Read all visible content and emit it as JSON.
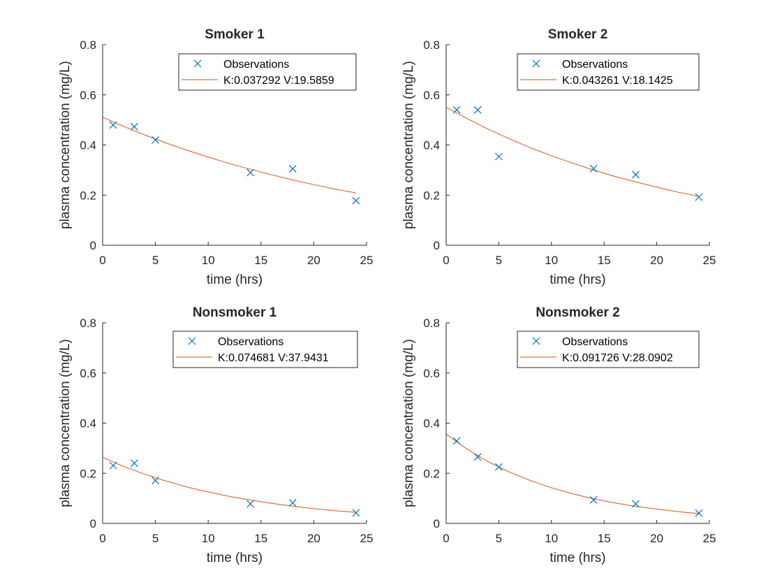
{
  "colors": {
    "observations": "#0072BD",
    "fit": "#D95319",
    "axis": "#262626",
    "legend_border": "#262626"
  },
  "chart_data": [
    {
      "type": "scatter",
      "title": "Smoker 1",
      "xlabel": "time (hrs)",
      "ylabel": "plasma concentration (mg/L)",
      "xlim": [
        0,
        25
      ],
      "ylim": [
        0,
        0.8
      ],
      "xticks": [
        "0",
        "5",
        "10",
        "15",
        "20",
        "25"
      ],
      "yticks": [
        "0",
        "0.2",
        "0.4",
        "0.6",
        "0.8"
      ],
      "grid": false,
      "legend_position": "top-right",
      "series": [
        {
          "name": "Observations",
          "kind": "markers",
          "marker": "x-icon",
          "x": [
            1,
            3,
            5,
            14,
            18,
            24
          ],
          "y": [
            0.48,
            0.473,
            0.42,
            0.29,
            0.305,
            0.178
          ]
        },
        {
          "name": "K:0.037292 V:19.5859",
          "kind": "line",
          "x": [
            0,
            2,
            4,
            6,
            8,
            10,
            12,
            14,
            16,
            18,
            20,
            22,
            24
          ],
          "y": [
            0.511,
            0.474,
            0.44,
            0.408,
            0.379,
            0.352,
            0.326,
            0.303,
            0.281,
            0.261,
            0.242,
            0.224,
            0.209
          ]
        }
      ]
    },
    {
      "type": "scatter",
      "title": "Smoker 2",
      "xlabel": "time (hrs)",
      "ylabel": "plasma concentration (mg/L)",
      "xlim": [
        0,
        25
      ],
      "ylim": [
        0,
        0.8
      ],
      "xticks": [
        "0",
        "5",
        "10",
        "15",
        "20",
        "25"
      ],
      "yticks": [
        "0",
        "0.2",
        "0.4",
        "0.6",
        "0.8"
      ],
      "grid": false,
      "legend_position": "top-right",
      "series": [
        {
          "name": "Observations",
          "kind": "markers",
          "marker": "x-icon",
          "x": [
            1,
            3,
            5,
            14,
            18,
            24
          ],
          "y": [
            0.54,
            0.54,
            0.354,
            0.306,
            0.282,
            0.192
          ]
        },
        {
          "name": "K:0.043261 V:18.1425",
          "kind": "line",
          "x": [
            0,
            2,
            4,
            6,
            8,
            10,
            12,
            14,
            16,
            18,
            20,
            22,
            24
          ],
          "y": [
            0.551,
            0.505,
            0.463,
            0.425,
            0.389,
            0.357,
            0.328,
            0.3,
            0.275,
            0.253,
            0.232,
            0.212,
            0.195
          ]
        }
      ]
    },
    {
      "type": "scatter",
      "title": "Nonsmoker 1",
      "xlabel": "time (hrs)",
      "ylabel": "plasma concentration (mg/L)",
      "xlim": [
        0,
        25
      ],
      "ylim": [
        0,
        0.8
      ],
      "xticks": [
        "0",
        "5",
        "10",
        "15",
        "20",
        "25"
      ],
      "yticks": [
        "0",
        "0.2",
        "0.4",
        "0.6",
        "0.8"
      ],
      "grid": false,
      "legend_position": "top-right",
      "series": [
        {
          "name": "Observations",
          "kind": "markers",
          "marker": "x-icon",
          "x": [
            1,
            3,
            5,
            14,
            18,
            24
          ],
          "y": [
            0.231,
            0.24,
            0.171,
            0.078,
            0.082,
            0.042
          ]
        },
        {
          "name": "K:0.074681 V:37.9431",
          "kind": "line",
          "x": [
            0,
            2,
            4,
            6,
            8,
            10,
            12,
            14,
            16,
            18,
            20,
            22,
            24
          ],
          "y": [
            0.264,
            0.227,
            0.196,
            0.169,
            0.145,
            0.125,
            0.108,
            0.093,
            0.08,
            0.069,
            0.059,
            0.051,
            0.044
          ]
        }
      ]
    },
    {
      "type": "scatter",
      "title": "Nonsmoker 2",
      "xlabel": "time (hrs)",
      "ylabel": "plasma concentration (mg/L)",
      "xlim": [
        0,
        25
      ],
      "ylim": [
        0,
        0.8
      ],
      "xticks": [
        "0",
        "5",
        "10",
        "15",
        "20",
        "25"
      ],
      "yticks": [
        "0",
        "0.2",
        "0.4",
        "0.6",
        "0.8"
      ],
      "grid": false,
      "legend_position": "top-right",
      "series": [
        {
          "name": "Observations",
          "kind": "markers",
          "marker": "x-icon",
          "x": [
            1,
            3,
            5,
            14,
            18,
            24
          ],
          "y": [
            0.329,
            0.265,
            0.225,
            0.094,
            0.078,
            0.041
          ]
        },
        {
          "name": "K:0.091726 V:28.0902",
          "kind": "line",
          "x": [
            0,
            2,
            4,
            6,
            8,
            10,
            12,
            14,
            16,
            18,
            20,
            22,
            24
          ],
          "y": [
            0.356,
            0.296,
            0.246,
            0.205,
            0.171,
            0.142,
            0.118,
            0.098,
            0.082,
            0.068,
            0.057,
            0.047,
            0.039
          ]
        }
      ]
    }
  ]
}
